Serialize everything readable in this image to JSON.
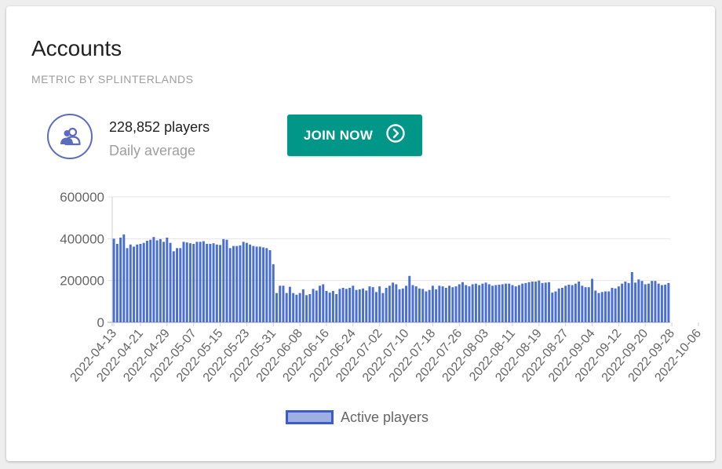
{
  "card": {
    "title": "Accounts",
    "subtitle": "METRIC BY SPLINTERLANDS"
  },
  "stat": {
    "icon": "people-icon",
    "value": "228,852 players",
    "label": "Daily average"
  },
  "join_button": {
    "label": "JOIN NOW",
    "icon": "chevron-right-circle-icon"
  },
  "colors": {
    "accent": "#009688",
    "icon": "#5c6bc0",
    "bar_fill": "#4a6fd4",
    "bar_border": "#3b5dc9"
  },
  "chart_data": {
    "type": "bar",
    "series_name": "Active players",
    "ylim": [
      0,
      600000
    ],
    "y_ticks": [
      0,
      200000,
      400000,
      600000
    ],
    "legend_position": "bottom",
    "grid": true,
    "x_tick_labels": [
      "2022-04-13",
      "2022-04-21",
      "2022-04-29",
      "2022-05-07",
      "2022-05-15",
      "2022-05-23",
      "2022-05-31",
      "2022-06-08",
      "2022-06-16",
      "2022-06-24",
      "2022-07-02",
      "2022-07-10",
      "2022-07-18",
      "2022-07-26",
      "2022-08-03",
      "2022-08-11",
      "2022-08-19",
      "2022-08-27",
      "2022-09-04",
      "2022-09-12",
      "2022-09-20",
      "2022-09-28",
      "2022-10-06"
    ],
    "start_date": "2022-04-13",
    "values": [
      400000,
      375000,
      405000,
      420000,
      355000,
      372000,
      362000,
      372000,
      375000,
      380000,
      390000,
      395000,
      408000,
      392000,
      398000,
      385000,
      405000,
      380000,
      340000,
      355000,
      355000,
      385000,
      382000,
      378000,
      375000,
      385000,
      385000,
      388000,
      375000,
      375000,
      378000,
      372000,
      370000,
      398000,
      395000,
      355000,
      365000,
      365000,
      368000,
      385000,
      380000,
      372000,
      365000,
      362000,
      362000,
      358000,
      355000,
      345000,
      278000,
      140000,
      175000,
      175000,
      140000,
      170000,
      140000,
      132000,
      140000,
      158000,
      130000,
      135000,
      160000,
      152000,
      175000,
      182000,
      150000,
      142000,
      150000,
      135000,
      160000,
      165000,
      160000,
      165000,
      175000,
      155000,
      158000,
      162000,
      152000,
      172000,
      168000,
      145000,
      172000,
      140000,
      165000,
      175000,
      190000,
      182000,
      158000,
      162000,
      175000,
      222000,
      178000,
      172000,
      162000,
      160000,
      148000,
      155000,
      175000,
      158000,
      175000,
      172000,
      165000,
      175000,
      168000,
      172000,
      182000,
      192000,
      178000,
      172000,
      182000,
      185000,
      178000,
      185000,
      190000,
      182000,
      175000,
      178000,
      180000,
      182000,
      185000,
      185000,
      178000,
      172000,
      178000,
      185000,
      188000,
      192000,
      195000,
      195000,
      200000,
      188000,
      190000,
      192000,
      142000,
      148000,
      162000,
      165000,
      175000,
      180000,
      178000,
      185000,
      195000,
      175000,
      168000,
      168000,
      208000,
      152000,
      140000,
      145000,
      148000,
      148000,
      165000,
      162000,
      172000,
      185000,
      195000,
      188000,
      240000,
      190000,
      205000,
      198000,
      182000,
      185000,
      198000,
      198000,
      185000,
      178000,
      180000,
      188000
    ]
  }
}
